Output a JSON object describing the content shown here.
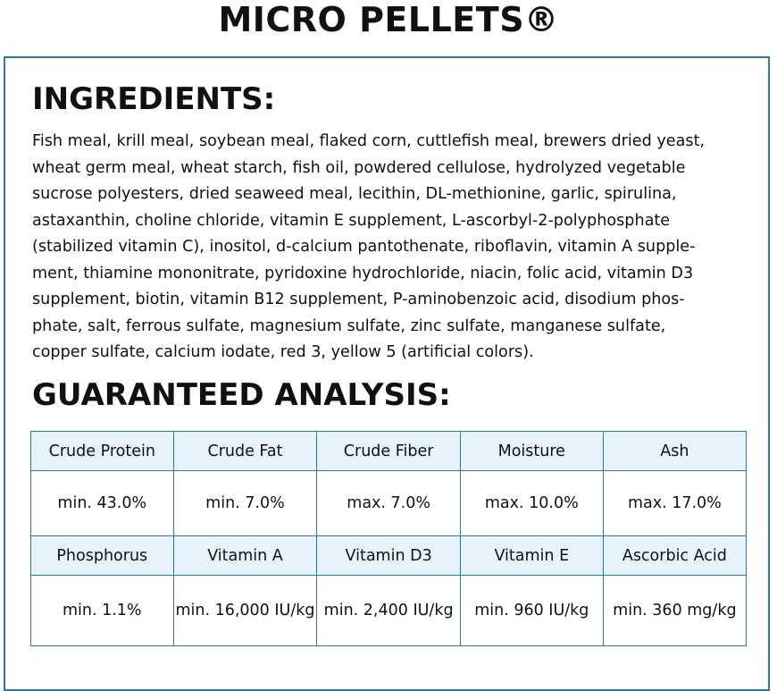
{
  "header": {
    "title": "MICRO PELLETS®"
  },
  "ingredients": {
    "heading": "INGREDIENTS:",
    "lines": [
      "Fish meal, krill meal, soybean meal, flaked corn, cuttlefish meal, brewers dried yeast,",
      "wheat germ meal, wheat starch, fish oil, powdered cellulose, hydrolyzed vegetable",
      "sucrose polyesters, dried seaweed meal, lecithin, DL-methionine, garlic, spirulina,",
      "astaxanthin, choline chloride, vitamin E supplement, L-ascorbyl-2-polyphosphate",
      "(stabilized vitamin C), inositol, d-calcium pantothenate, riboflavin, vitamin A supple-",
      "ment, thiamine mononitrate, pyridoxine hydrochloride, niacin, folic acid, vitamin D3",
      "supplement, biotin, vitamin B12 supplement, P-aminobenzoic acid, disodium phos-",
      "phate, salt, ferrous sulfate, magnesium sulfate, zinc sulfate, manganese sulfate,",
      "copper sulfate, calcium iodate, red 3, yellow 5 (artificial colors)."
    ]
  },
  "analysis": {
    "heading": "GUARANTEED ANALYSIS:",
    "table": {
      "rows": [
        [
          "Crude Protein",
          "Crude Fat",
          "Crude Fiber",
          "Moisture",
          "Ash"
        ],
        [
          "min. 43.0%",
          "min. 7.0%",
          "max. 7.0%",
          "max. 10.0%",
          "max. 17.0%"
        ],
        [
          "Phosphorus",
          "Vitamin A",
          "Vitamin D3",
          "Vitamin E",
          "Ascorbic Acid"
        ],
        [
          "min. 1.1%",
          "min. 16,000 IU/kg",
          "min. 2,400 IU/kg",
          "min. 960 IU/kg",
          "min. 360 mg/kg"
        ]
      ]
    }
  }
}
